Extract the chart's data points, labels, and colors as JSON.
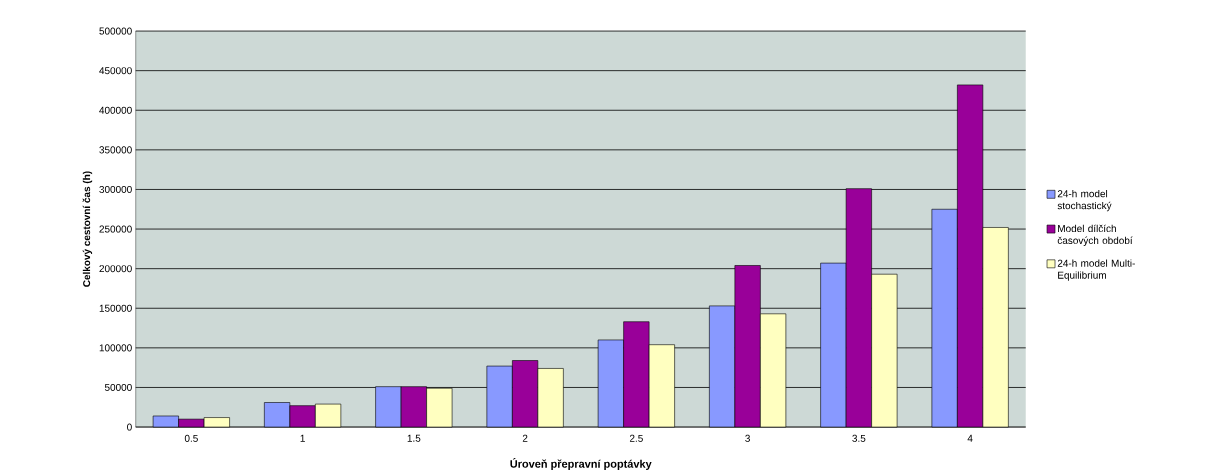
{
  "chart_data": {
    "type": "bar",
    "xlabel": "Úroveň přepravní poptávky",
    "ylabel": "Celkový cestovní čas (h)",
    "categories": [
      "0.5",
      "1",
      "1.5",
      "2",
      "2.5",
      "3",
      "3.5",
      "4"
    ],
    "series": [
      {
        "name": "24-h model stochastický",
        "color": "#8899ff",
        "values": [
          14000,
          31000,
          51000,
          77000,
          110000,
          153000,
          207000,
          275000
        ]
      },
      {
        "name": "Model dílčích časových období",
        "color": "#990099",
        "values": [
          10000,
          27000,
          51000,
          84000,
          133000,
          204000,
          301000,
          432000
        ]
      },
      {
        "name": "24-h model Multi-Equilibrium",
        "color": "#ffffc0",
        "values": [
          12000,
          29000,
          49000,
          74000,
          104000,
          143000,
          193000,
          252000
        ]
      }
    ],
    "ylim": [
      0,
      500000
    ],
    "yticks": [
      0,
      50000,
      100000,
      150000,
      200000,
      250000,
      300000,
      350000,
      400000,
      450000,
      500000
    ],
    "grid": "y",
    "legend": "right"
  }
}
